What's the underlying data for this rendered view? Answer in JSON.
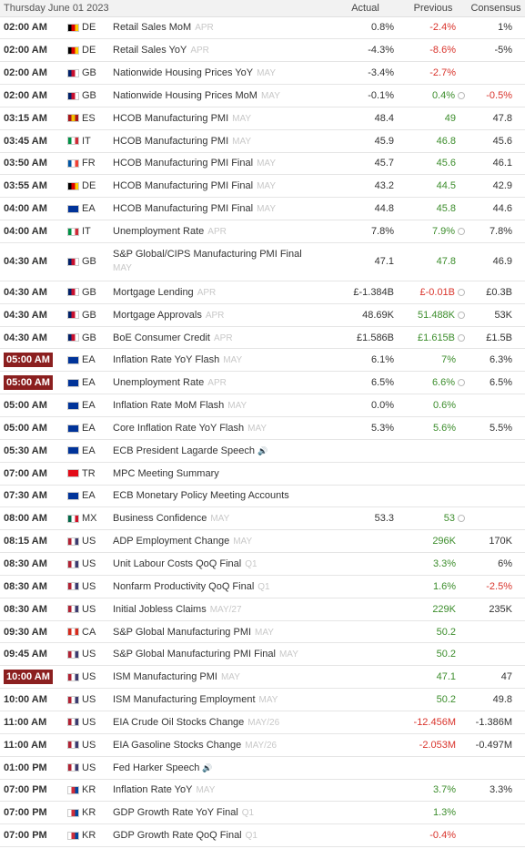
{
  "header": {
    "date": "Thursday June 01 2023",
    "actual": "Actual",
    "previous": "Previous",
    "consensus": "Consensus"
  },
  "rows": [
    {
      "time": "02:00 AM",
      "hl": false,
      "country": "DE",
      "flag": [
        "#000",
        "#dd0000",
        "#ffce00"
      ],
      "event": "Retail Sales MoM",
      "ref": "APR",
      "actual": "0.8%",
      "previous": "-2.4%",
      "prev_color": "red",
      "rev": false,
      "consensus": "1%",
      "cons_color": ""
    },
    {
      "time": "02:00 AM",
      "hl": false,
      "country": "DE",
      "flag": [
        "#000",
        "#dd0000",
        "#ffce00"
      ],
      "event": "Retail Sales YoY",
      "ref": "APR",
      "actual": "-4.3%",
      "previous": "-8.6%",
      "prev_color": "red",
      "rev": false,
      "consensus": "-5%",
      "cons_color": ""
    },
    {
      "time": "02:00 AM",
      "hl": false,
      "country": "GB",
      "flag": [
        "#012169",
        "#c8102e",
        "#fff"
      ],
      "event": "Nationwide Housing Prices YoY",
      "ref": "MAY",
      "actual": "-3.4%",
      "previous": "-2.7%",
      "prev_color": "red",
      "rev": false,
      "consensus": "",
      "cons_color": ""
    },
    {
      "time": "02:00 AM",
      "hl": false,
      "country": "GB",
      "flag": [
        "#012169",
        "#c8102e",
        "#fff"
      ],
      "event": "Nationwide Housing Prices MoM",
      "ref": "MAY",
      "actual": "-0.1%",
      "previous": "0.4%",
      "prev_color": "green",
      "rev": true,
      "consensus": "-0.5%",
      "cons_color": "red"
    },
    {
      "time": "03:15 AM",
      "hl": false,
      "country": "ES",
      "flag": [
        "#aa151b",
        "#f1bf00",
        "#aa151b"
      ],
      "event": "HCOB Manufacturing PMI",
      "ref": "MAY",
      "actual": "48.4",
      "previous": "49",
      "prev_color": "green",
      "rev": false,
      "consensus": "47.8",
      "cons_color": ""
    },
    {
      "time": "03:45 AM",
      "hl": false,
      "country": "IT",
      "flag": [
        "#009246",
        "#fff",
        "#ce2b37"
      ],
      "event": "HCOB Manufacturing PMI",
      "ref": "MAY",
      "actual": "45.9",
      "previous": "46.8",
      "prev_color": "green",
      "rev": false,
      "consensus": "45.6",
      "cons_color": ""
    },
    {
      "time": "03:50 AM",
      "hl": false,
      "country": "FR",
      "flag": [
        "#0055a4",
        "#fff",
        "#ef4135"
      ],
      "event": "HCOB Manufacturing PMI Final",
      "ref": "MAY",
      "actual": "45.7",
      "previous": "45.6",
      "prev_color": "green",
      "rev": false,
      "consensus": "46.1",
      "cons_color": ""
    },
    {
      "time": "03:55 AM",
      "hl": false,
      "country": "DE",
      "flag": [
        "#000",
        "#dd0000",
        "#ffce00"
      ],
      "event": "HCOB Manufacturing PMI Final",
      "ref": "MAY",
      "actual": "43.2",
      "previous": "44.5",
      "prev_color": "green",
      "rev": false,
      "consensus": "42.9",
      "cons_color": ""
    },
    {
      "time": "04:00 AM",
      "hl": false,
      "country": "EA",
      "flag": [
        "#003399",
        "#003399",
        "#003399"
      ],
      "event": "HCOB Manufacturing PMI Final",
      "ref": "MAY",
      "actual": "44.8",
      "previous": "45.8",
      "prev_color": "green",
      "rev": false,
      "consensus": "44.6",
      "cons_color": ""
    },
    {
      "time": "04:00 AM",
      "hl": false,
      "country": "IT",
      "flag": [
        "#009246",
        "#fff",
        "#ce2b37"
      ],
      "event": "Unemployment Rate",
      "ref": "APR",
      "actual": "7.8%",
      "previous": "7.9%",
      "prev_color": "green",
      "rev": true,
      "consensus": "7.8%",
      "cons_color": ""
    },
    {
      "time": "04:30 AM",
      "hl": false,
      "country": "GB",
      "flag": [
        "#012169",
        "#c8102e",
        "#fff"
      ],
      "event": "S&P Global/CIPS Manufacturing PMI Final",
      "ref": "MAY",
      "actual": "47.1",
      "previous": "47.8",
      "prev_color": "green",
      "rev": false,
      "consensus": "46.9",
      "cons_color": "",
      "wrap": true
    },
    {
      "time": "04:30 AM",
      "hl": false,
      "country": "GB",
      "flag": [
        "#012169",
        "#c8102e",
        "#fff"
      ],
      "event": "Mortgage Lending",
      "ref": "APR",
      "actual": "£-1.384B",
      "previous": "£-0.01B",
      "prev_color": "red",
      "rev": true,
      "consensus": "£0.3B",
      "cons_color": ""
    },
    {
      "time": "04:30 AM",
      "hl": false,
      "country": "GB",
      "flag": [
        "#012169",
        "#c8102e",
        "#fff"
      ],
      "event": "Mortgage Approvals",
      "ref": "APR",
      "actual": "48.69K",
      "previous": "51.488K",
      "prev_color": "green",
      "rev": true,
      "consensus": "53K",
      "cons_color": ""
    },
    {
      "time": "04:30 AM",
      "hl": false,
      "country": "GB",
      "flag": [
        "#012169",
        "#c8102e",
        "#fff"
      ],
      "event": "BoE Consumer Credit",
      "ref": "APR",
      "actual": "£1.586B",
      "previous": "£1.615B",
      "prev_color": "green",
      "rev": true,
      "consensus": "£1.5B",
      "cons_color": ""
    },
    {
      "time": "05:00 AM",
      "hl": true,
      "country": "EA",
      "flag": [
        "#003399",
        "#003399",
        "#003399"
      ],
      "event": "Inflation Rate YoY Flash",
      "ref": "MAY",
      "actual": "6.1%",
      "previous": "7%",
      "prev_color": "green",
      "rev": false,
      "consensus": "6.3%",
      "cons_color": ""
    },
    {
      "time": "05:00 AM",
      "hl": true,
      "country": "EA",
      "flag": [
        "#003399",
        "#003399",
        "#003399"
      ],
      "event": "Unemployment Rate",
      "ref": "APR",
      "actual": "6.5%",
      "previous": "6.6%",
      "prev_color": "green",
      "rev": true,
      "consensus": "6.5%",
      "cons_color": ""
    },
    {
      "time": "05:00 AM",
      "hl": false,
      "country": "EA",
      "flag": [
        "#003399",
        "#003399",
        "#003399"
      ],
      "event": "Inflation Rate MoM Flash",
      "ref": "MAY",
      "actual": "0.0%",
      "previous": "0.6%",
      "prev_color": "green",
      "rev": false,
      "consensus": "",
      "cons_color": ""
    },
    {
      "time": "05:00 AM",
      "hl": false,
      "country": "EA",
      "flag": [
        "#003399",
        "#003399",
        "#003399"
      ],
      "event": "Core Inflation Rate YoY Flash",
      "ref": "MAY",
      "actual": "5.3%",
      "previous": "5.6%",
      "prev_color": "green",
      "rev": false,
      "consensus": "5.5%",
      "cons_color": ""
    },
    {
      "time": "05:30 AM",
      "hl": false,
      "country": "EA",
      "flag": [
        "#003399",
        "#003399",
        "#003399"
      ],
      "event": "ECB President Lagarde Speech",
      "ref": "",
      "speaker": true,
      "actual": "",
      "previous": "",
      "prev_color": "",
      "rev": false,
      "consensus": "",
      "cons_color": ""
    },
    {
      "time": "07:00 AM",
      "hl": false,
      "country": "TR",
      "flag": [
        "#e30a17",
        "#e30a17",
        "#e30a17"
      ],
      "event": "MPC Meeting Summary",
      "ref": "",
      "actual": "",
      "previous": "",
      "prev_color": "",
      "rev": false,
      "consensus": "",
      "cons_color": ""
    },
    {
      "time": "07:30 AM",
      "hl": false,
      "country": "EA",
      "flag": [
        "#003399",
        "#003399",
        "#003399"
      ],
      "event": "ECB Monetary Policy Meeting Accounts",
      "ref": "",
      "actual": "",
      "previous": "",
      "prev_color": "",
      "rev": false,
      "consensus": "",
      "cons_color": ""
    },
    {
      "time": "08:00 AM",
      "hl": false,
      "country": "MX",
      "flag": [
        "#006847",
        "#fff",
        "#ce1126"
      ],
      "event": "Business Confidence",
      "ref": "MAY",
      "actual": "53.3",
      "previous": "53",
      "prev_color": "green",
      "rev": true,
      "consensus": "",
      "cons_color": ""
    },
    {
      "time": "08:15 AM",
      "hl": false,
      "country": "US",
      "flag": [
        "#b22234",
        "#fff",
        "#3c3b6e"
      ],
      "event": "ADP Employment Change",
      "ref": "MAY",
      "actual": "",
      "previous": "296K",
      "prev_color": "green",
      "rev": false,
      "consensus": "170K",
      "cons_color": ""
    },
    {
      "time": "08:30 AM",
      "hl": false,
      "country": "US",
      "flag": [
        "#b22234",
        "#fff",
        "#3c3b6e"
      ],
      "event": "Unit Labour Costs QoQ Final",
      "ref": "Q1",
      "actual": "",
      "previous": "3.3%",
      "prev_color": "green",
      "rev": false,
      "consensus": "6%",
      "cons_color": ""
    },
    {
      "time": "08:30 AM",
      "hl": false,
      "country": "US",
      "flag": [
        "#b22234",
        "#fff",
        "#3c3b6e"
      ],
      "event": "Nonfarm Productivity QoQ Final",
      "ref": "Q1",
      "actual": "",
      "previous": "1.6%",
      "prev_color": "green",
      "rev": false,
      "consensus": "-2.5%",
      "cons_color": "red"
    },
    {
      "time": "08:30 AM",
      "hl": false,
      "country": "US",
      "flag": [
        "#b22234",
        "#fff",
        "#3c3b6e"
      ],
      "event": "Initial Jobless Claims",
      "ref": "MAY/27",
      "actual": "",
      "previous": "229K",
      "prev_color": "green",
      "rev": false,
      "consensus": "235K",
      "cons_color": ""
    },
    {
      "time": "09:30 AM",
      "hl": false,
      "country": "CA",
      "flag": [
        "#d52b1e",
        "#fff",
        "#d52b1e"
      ],
      "event": "S&P Global Manufacturing PMI",
      "ref": "MAY",
      "actual": "",
      "previous": "50.2",
      "prev_color": "green",
      "rev": false,
      "consensus": "",
      "cons_color": ""
    },
    {
      "time": "09:45 AM",
      "hl": false,
      "country": "US",
      "flag": [
        "#b22234",
        "#fff",
        "#3c3b6e"
      ],
      "event": "S&P Global Manufacturing PMI Final",
      "ref": "MAY",
      "actual": "",
      "previous": "50.2",
      "prev_color": "green",
      "rev": false,
      "consensus": "",
      "cons_color": ""
    },
    {
      "time": "10:00 AM",
      "hl": true,
      "country": "US",
      "flag": [
        "#b22234",
        "#fff",
        "#3c3b6e"
      ],
      "event": "ISM Manufacturing PMI",
      "ref": "MAY",
      "actual": "",
      "previous": "47.1",
      "prev_color": "green",
      "rev": false,
      "consensus": "47",
      "cons_color": ""
    },
    {
      "time": "10:00 AM",
      "hl": false,
      "country": "US",
      "flag": [
        "#b22234",
        "#fff",
        "#3c3b6e"
      ],
      "event": "ISM Manufacturing Employment",
      "ref": "MAY",
      "actual": "",
      "previous": "50.2",
      "prev_color": "green",
      "rev": false,
      "consensus": "49.8",
      "cons_color": ""
    },
    {
      "time": "11:00 AM",
      "hl": false,
      "country": "US",
      "flag": [
        "#b22234",
        "#fff",
        "#3c3b6e"
      ],
      "event": "EIA Crude Oil Stocks Change",
      "ref": "MAY/26",
      "actual": "",
      "previous": "-12.456M",
      "prev_color": "red",
      "rev": false,
      "consensus": "-1.386M",
      "cons_color": ""
    },
    {
      "time": "11:00 AM",
      "hl": false,
      "country": "US",
      "flag": [
        "#b22234",
        "#fff",
        "#3c3b6e"
      ],
      "event": "EIA Gasoline Stocks Change",
      "ref": "MAY/26",
      "actual": "",
      "previous": "-2.053M",
      "prev_color": "red",
      "rev": false,
      "consensus": "-0.497M",
      "cons_color": ""
    },
    {
      "time": "01:00 PM",
      "hl": false,
      "country": "US",
      "flag": [
        "#b22234",
        "#fff",
        "#3c3b6e"
      ],
      "event": "Fed Harker Speech",
      "ref": "",
      "speaker": true,
      "actual": "",
      "previous": "",
      "prev_color": "",
      "rev": false,
      "consensus": "",
      "cons_color": ""
    },
    {
      "time": "07:00 PM",
      "hl": false,
      "country": "KR",
      "flag": [
        "#fff",
        "#cd2e3a",
        "#0047a0"
      ],
      "event": "Inflation Rate YoY",
      "ref": "MAY",
      "actual": "",
      "previous": "3.7%",
      "prev_color": "green",
      "rev": false,
      "consensus": "3.3%",
      "cons_color": ""
    },
    {
      "time": "07:00 PM",
      "hl": false,
      "country": "KR",
      "flag": [
        "#fff",
        "#cd2e3a",
        "#0047a0"
      ],
      "event": "GDP Growth Rate YoY Final",
      "ref": "Q1",
      "actual": "",
      "previous": "1.3%",
      "prev_color": "green",
      "rev": false,
      "consensus": "",
      "cons_color": ""
    },
    {
      "time": "07:00 PM",
      "hl": false,
      "country": "KR",
      "flag": [
        "#fff",
        "#cd2e3a",
        "#0047a0"
      ],
      "event": "GDP Growth Rate QoQ Final",
      "ref": "Q1",
      "actual": "",
      "previous": "-0.4%",
      "prev_color": "red",
      "rev": false,
      "consensus": "",
      "cons_color": ""
    }
  ]
}
